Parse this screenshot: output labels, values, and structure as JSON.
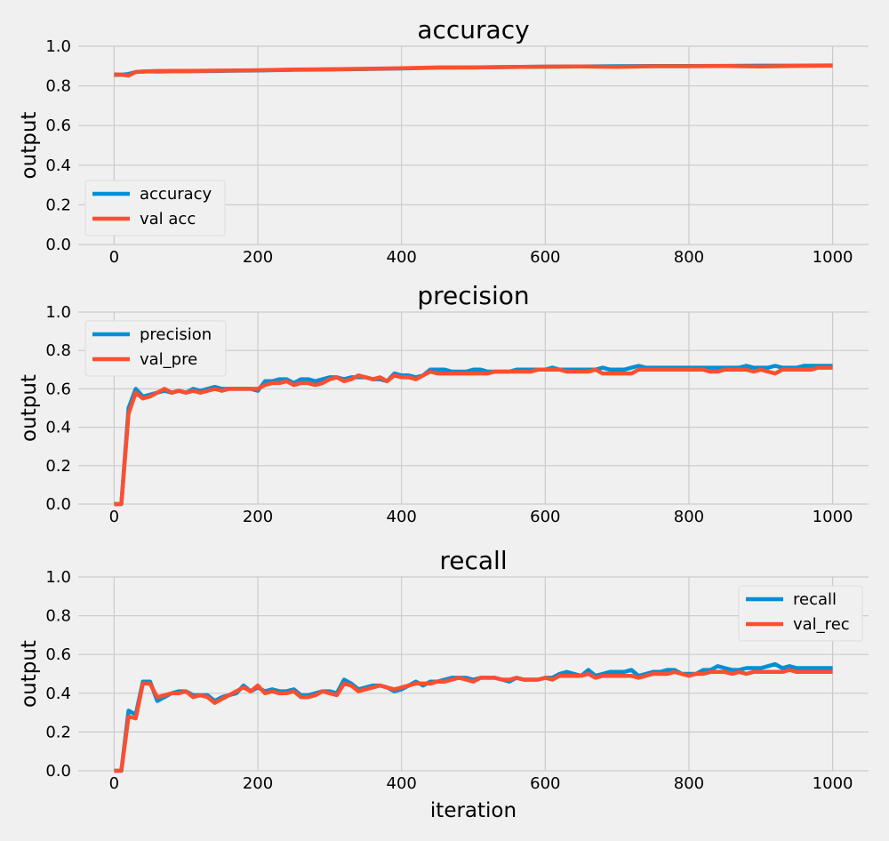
{
  "chart_data": [
    {
      "type": "line",
      "title": "accuracy",
      "ylabel": "output",
      "xlabel": "",
      "xlim": [
        -50,
        1050
      ],
      "ylim": [
        0,
        1
      ],
      "xticks": [
        "0",
        "200",
        "400",
        "600",
        "800",
        "1000"
      ],
      "yticks": [
        "0.0",
        "0.2",
        "0.4",
        "0.6",
        "0.8",
        "1.0"
      ],
      "grid": true,
      "legend": "lower-left",
      "x": [
        0,
        10,
        20,
        30,
        40,
        50,
        60,
        80,
        100,
        150,
        200,
        250,
        300,
        350,
        400,
        450,
        500,
        550,
        600,
        650,
        700,
        750,
        800,
        850,
        900,
        950,
        1000
      ],
      "series": [
        {
          "name": "accuracy",
          "color": "#008fd5",
          "values": [
            0.855,
            0.856,
            0.86,
            0.87,
            0.872,
            0.873,
            0.872,
            0.874,
            0.874,
            0.876,
            0.878,
            0.881,
            0.883,
            0.885,
            0.888,
            0.892,
            0.893,
            0.895,
            0.897,
            0.898,
            0.899,
            0.9,
            0.9,
            0.901,
            0.902,
            0.902,
            0.903
          ]
        },
        {
          "name": "val acc",
          "color": "#fc4f30",
          "values": [
            0.858,
            0.857,
            0.852,
            0.87,
            0.872,
            0.874,
            0.875,
            0.876,
            0.876,
            0.877,
            0.879,
            0.882,
            0.884,
            0.886,
            0.889,
            0.893,
            0.893,
            0.895,
            0.897,
            0.898,
            0.896,
            0.899,
            0.899,
            0.9,
            0.898,
            0.901,
            0.902
          ]
        }
      ]
    },
    {
      "type": "line",
      "title": "precision",
      "ylabel": "output",
      "xlabel": "",
      "xlim": [
        -50,
        1050
      ],
      "ylim": [
        0,
        1
      ],
      "xticks": [
        "0",
        "200",
        "400",
        "600",
        "800",
        "1000"
      ],
      "yticks": [
        "0.0",
        "0.2",
        "0.4",
        "0.6",
        "0.8",
        "1.0"
      ],
      "grid": true,
      "legend": "upper-left",
      "x": [
        0,
        10,
        20,
        30,
        40,
        50,
        60,
        70,
        80,
        90,
        100,
        110,
        120,
        130,
        140,
        150,
        160,
        170,
        180,
        190,
        200,
        210,
        220,
        230,
        240,
        250,
        260,
        270,
        280,
        290,
        300,
        310,
        320,
        330,
        340,
        350,
        360,
        370,
        380,
        390,
        400,
        410,
        420,
        430,
        440,
        450,
        460,
        470,
        480,
        490,
        500,
        510,
        520,
        530,
        540,
        550,
        560,
        570,
        580,
        590,
        600,
        610,
        620,
        630,
        640,
        650,
        660,
        670,
        680,
        690,
        700,
        710,
        720,
        730,
        740,
        750,
        760,
        770,
        780,
        790,
        800,
        810,
        820,
        830,
        840,
        850,
        860,
        870,
        880,
        890,
        900,
        910,
        920,
        930,
        940,
        950,
        960,
        970,
        980,
        990,
        1000
      ],
      "series": [
        {
          "name": "precision",
          "color": "#008fd5",
          "values": [
            0.0,
            0.0,
            0.5,
            0.6,
            0.56,
            0.57,
            0.58,
            0.59,
            0.58,
            0.59,
            0.58,
            0.6,
            0.59,
            0.6,
            0.61,
            0.6,
            0.6,
            0.6,
            0.6,
            0.6,
            0.59,
            0.64,
            0.64,
            0.65,
            0.65,
            0.63,
            0.65,
            0.65,
            0.64,
            0.65,
            0.66,
            0.66,
            0.65,
            0.66,
            0.66,
            0.66,
            0.65,
            0.65,
            0.64,
            0.68,
            0.67,
            0.67,
            0.66,
            0.67,
            0.7,
            0.7,
            0.7,
            0.69,
            0.69,
            0.69,
            0.7,
            0.7,
            0.69,
            0.69,
            0.69,
            0.69,
            0.7,
            0.7,
            0.7,
            0.7,
            0.7,
            0.71,
            0.7,
            0.7,
            0.7,
            0.7,
            0.7,
            0.7,
            0.71,
            0.7,
            0.7,
            0.7,
            0.71,
            0.72,
            0.71,
            0.71,
            0.71,
            0.71,
            0.71,
            0.71,
            0.71,
            0.71,
            0.71,
            0.71,
            0.71,
            0.71,
            0.71,
            0.71,
            0.72,
            0.71,
            0.71,
            0.71,
            0.72,
            0.71,
            0.71,
            0.71,
            0.72,
            0.72,
            0.72,
            0.72,
            0.72
          ]
        },
        {
          "name": "val_pre",
          "color": "#fc4f30",
          "values": [
            0.0,
            0.0,
            0.47,
            0.58,
            0.55,
            0.56,
            0.58,
            0.6,
            0.58,
            0.59,
            0.58,
            0.59,
            0.58,
            0.59,
            0.6,
            0.59,
            0.6,
            0.6,
            0.6,
            0.6,
            0.6,
            0.62,
            0.63,
            0.63,
            0.64,
            0.62,
            0.63,
            0.63,
            0.62,
            0.63,
            0.65,
            0.66,
            0.64,
            0.65,
            0.67,
            0.66,
            0.65,
            0.66,
            0.64,
            0.67,
            0.66,
            0.66,
            0.65,
            0.67,
            0.69,
            0.68,
            0.68,
            0.68,
            0.68,
            0.68,
            0.68,
            0.68,
            0.68,
            0.69,
            0.69,
            0.69,
            0.69,
            0.69,
            0.69,
            0.7,
            0.7,
            0.7,
            0.7,
            0.69,
            0.69,
            0.69,
            0.69,
            0.7,
            0.68,
            0.68,
            0.68,
            0.68,
            0.68,
            0.7,
            0.7,
            0.7,
            0.7,
            0.7,
            0.7,
            0.7,
            0.7,
            0.7,
            0.7,
            0.69,
            0.69,
            0.7,
            0.7,
            0.7,
            0.7,
            0.69,
            0.7,
            0.69,
            0.68,
            0.7,
            0.7,
            0.7,
            0.7,
            0.7,
            0.71,
            0.71,
            0.71
          ]
        }
      ]
    },
    {
      "type": "line",
      "title": "recall",
      "ylabel": "output",
      "xlabel": "iteration",
      "xlim": [
        -50,
        1050
      ],
      "ylim": [
        0,
        1
      ],
      "xticks": [
        "0",
        "200",
        "400",
        "600",
        "800",
        "1000"
      ],
      "yticks": [
        "0.0",
        "0.2",
        "0.4",
        "0.6",
        "0.8",
        "1.0"
      ],
      "grid": true,
      "legend": "upper-right",
      "x": [
        0,
        10,
        20,
        30,
        40,
        50,
        60,
        70,
        80,
        90,
        100,
        110,
        120,
        130,
        140,
        150,
        160,
        170,
        180,
        190,
        200,
        210,
        220,
        230,
        240,
        250,
        260,
        270,
        280,
        290,
        300,
        310,
        320,
        330,
        340,
        350,
        360,
        370,
        380,
        390,
        400,
        410,
        420,
        430,
        440,
        450,
        460,
        470,
        480,
        490,
        500,
        510,
        520,
        530,
        540,
        550,
        560,
        570,
        580,
        590,
        600,
        610,
        620,
        630,
        640,
        650,
        660,
        670,
        680,
        690,
        700,
        710,
        720,
        730,
        740,
        750,
        760,
        770,
        780,
        790,
        800,
        810,
        820,
        830,
        840,
        850,
        860,
        870,
        880,
        890,
        900,
        910,
        920,
        930,
        940,
        950,
        960,
        970,
        980,
        990,
        1000
      ],
      "series": [
        {
          "name": "recall",
          "color": "#008fd5",
          "values": [
            0.0,
            0.0,
            0.31,
            0.29,
            0.46,
            0.46,
            0.36,
            0.38,
            0.4,
            0.41,
            0.41,
            0.39,
            0.39,
            0.39,
            0.36,
            0.38,
            0.39,
            0.4,
            0.44,
            0.41,
            0.43,
            0.41,
            0.42,
            0.41,
            0.41,
            0.42,
            0.39,
            0.39,
            0.4,
            0.41,
            0.41,
            0.4,
            0.47,
            0.45,
            0.42,
            0.43,
            0.44,
            0.44,
            0.43,
            0.41,
            0.42,
            0.44,
            0.46,
            0.44,
            0.46,
            0.46,
            0.47,
            0.48,
            0.48,
            0.48,
            0.47,
            0.48,
            0.48,
            0.48,
            0.47,
            0.46,
            0.48,
            0.47,
            0.47,
            0.47,
            0.48,
            0.48,
            0.5,
            0.51,
            0.5,
            0.49,
            0.52,
            0.49,
            0.5,
            0.51,
            0.51,
            0.51,
            0.52,
            0.49,
            0.5,
            0.51,
            0.51,
            0.52,
            0.52,
            0.5,
            0.5,
            0.5,
            0.52,
            0.52,
            0.54,
            0.53,
            0.52,
            0.52,
            0.53,
            0.53,
            0.53,
            0.54,
            0.55,
            0.53,
            0.54,
            0.53,
            0.53,
            0.53,
            0.53,
            0.53,
            0.53
          ]
        },
        {
          "name": "val_rec",
          "color": "#fc4f30",
          "values": [
            0.0,
            0.0,
            0.28,
            0.27,
            0.45,
            0.45,
            0.38,
            0.39,
            0.4,
            0.4,
            0.41,
            0.38,
            0.39,
            0.38,
            0.35,
            0.37,
            0.39,
            0.41,
            0.43,
            0.41,
            0.44,
            0.4,
            0.41,
            0.4,
            0.4,
            0.41,
            0.38,
            0.38,
            0.39,
            0.41,
            0.4,
            0.39,
            0.45,
            0.44,
            0.41,
            0.42,
            0.43,
            0.44,
            0.43,
            0.42,
            0.43,
            0.44,
            0.45,
            0.45,
            0.45,
            0.46,
            0.46,
            0.47,
            0.48,
            0.47,
            0.46,
            0.48,
            0.48,
            0.48,
            0.47,
            0.47,
            0.48,
            0.47,
            0.47,
            0.47,
            0.48,
            0.47,
            0.49,
            0.49,
            0.49,
            0.49,
            0.5,
            0.48,
            0.49,
            0.49,
            0.49,
            0.49,
            0.49,
            0.48,
            0.49,
            0.5,
            0.5,
            0.5,
            0.51,
            0.5,
            0.49,
            0.5,
            0.5,
            0.51,
            0.51,
            0.51,
            0.5,
            0.51,
            0.5,
            0.51,
            0.51,
            0.51,
            0.51,
            0.51,
            0.52,
            0.51,
            0.51,
            0.51,
            0.51,
            0.51,
            0.51
          ]
        }
      ]
    }
  ]
}
